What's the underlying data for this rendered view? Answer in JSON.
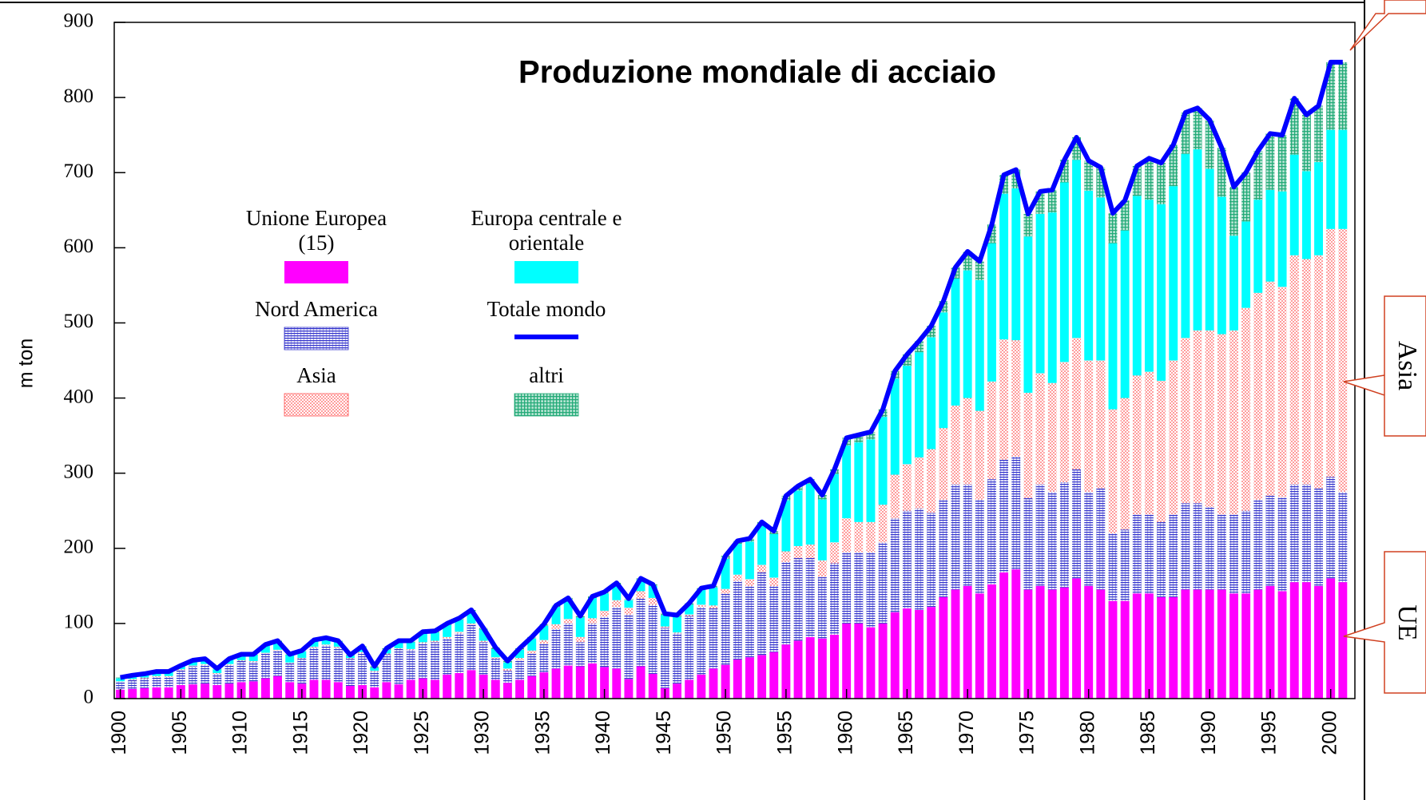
{
  "chart_data": {
    "type": "stacked_bar",
    "title": "Produzione mondiale di acciaio",
    "y_label": "m ton",
    "x": [
      1900,
      1901,
      1902,
      1903,
      1904,
      1905,
      1906,
      1907,
      1908,
      1909,
      1910,
      1911,
      1912,
      1913,
      1914,
      1915,
      1916,
      1917,
      1918,
      1919,
      1920,
      1921,
      1922,
      1923,
      1924,
      1925,
      1926,
      1927,
      1928,
      1929,
      1930,
      1931,
      1932,
      1933,
      1934,
      1935,
      1936,
      1937,
      1938,
      1939,
      1940,
      1941,
      1942,
      1943,
      1944,
      1945,
      1946,
      1947,
      1948,
      1949,
      1950,
      1951,
      1952,
      1953,
      1954,
      1955,
      1956,
      1957,
      1958,
      1959,
      1960,
      1961,
      1962,
      1963,
      1964,
      1965,
      1966,
      1967,
      1968,
      1969,
      1970,
      1971,
      1972,
      1973,
      1974,
      1975,
      1976,
      1977,
      1978,
      1979,
      1980,
      1981,
      1982,
      1983,
      1984,
      1985,
      1986,
      1987,
      1988,
      1989,
      1990,
      1991,
      1992,
      1993,
      1994,
      1995,
      1996,
      1997,
      1998,
      1999,
      2000,
      2001
    ],
    "xlim": [
      1899.5,
      2002
    ],
    "xticks": [
      1900,
      1905,
      1910,
      1915,
      1920,
      1925,
      1930,
      1935,
      1940,
      1945,
      1950,
      1955,
      1960,
      1965,
      1970,
      1975,
      1980,
      1985,
      1990,
      1995,
      2000
    ],
    "ylim": [
      0,
      900
    ],
    "yticks": [
      0,
      100,
      200,
      300,
      400,
      500,
      600,
      700,
      800,
      900
    ],
    "series": [
      {
        "name": "Unione Europea (15)",
        "color": "#ff00ff",
        "pattern": "solid",
        "values": [
          12,
          13,
          14,
          15,
          15,
          18,
          19,
          20,
          18,
          20,
          22,
          23,
          27,
          30,
          22,
          20,
          25,
          25,
          22,
          17,
          18,
          15,
          22,
          19,
          25,
          27,
          25,
          32,
          34,
          38,
          32,
          25,
          21,
          25,
          30,
          35,
          40,
          44,
          43,
          47,
          42,
          40,
          26,
          43,
          33,
          14,
          20,
          25,
          32,
          40,
          45,
          52,
          55,
          58,
          62,
          72,
          77,
          82,
          80,
          85,
          100,
          100,
          95,
          100,
          115,
          120,
          118,
          122,
          135,
          145,
          150,
          140,
          152,
          168,
          172,
          145,
          150,
          145,
          148,
          160,
          150,
          145,
          130,
          130,
          140,
          140,
          135,
          135,
          145,
          145,
          145,
          145,
          140,
          140,
          145,
          150,
          143,
          155,
          155,
          150,
          160,
          155
        ]
      },
      {
        "name": "Nord  America",
        "color": "#3333cc",
        "pattern": "hlines",
        "values": [
          10,
          12,
          13,
          14,
          14,
          20,
          24,
          25,
          15,
          25,
          28,
          26,
          33,
          34,
          25,
          33,
          43,
          46,
          46,
          36,
          43,
          21,
          37,
          47,
          40,
          47,
          50,
          48,
          53,
          60,
          43,
          28,
          16,
          26,
          30,
          38,
          53,
          56,
          32,
          53,
          67,
          82,
          86,
          90,
          92,
          80,
          67,
          85,
          90,
          80,
          95,
          105,
          95,
          110,
          88,
          110,
          110,
          105,
          82,
          95,
          95,
          95,
          100,
          108,
          125,
          130,
          135,
          125,
          130,
          140,
          135,
          125,
          140,
          150,
          150,
          122,
          135,
          130,
          140,
          145,
          125,
          135,
          90,
          95,
          105,
          105,
          100,
          110,
          115,
          115,
          110,
          100,
          105,
          110,
          120,
          120,
          125,
          130,
          130,
          130,
          135,
          120
        ]
      },
      {
        "name": "Asia",
        "color": "#ff5555",
        "pattern": "dots",
        "values": [
          1,
          1,
          1,
          1,
          1,
          1,
          1,
          1,
          1,
          1,
          1,
          1,
          1,
          1,
          1,
          1,
          1,
          1,
          1,
          1,
          1,
          1,
          1,
          1,
          1,
          1,
          2,
          2,
          2,
          2,
          2,
          2,
          3,
          3,
          4,
          5,
          6,
          6,
          7,
          7,
          8,
          9,
          9,
          10,
          9,
          2,
          1,
          2,
          3,
          4,
          6,
          8,
          9,
          10,
          11,
          14,
          16,
          18,
          22,
          28,
          45,
          40,
          40,
          50,
          58,
          62,
          68,
          85,
          95,
          105,
          115,
          118,
          130,
          160,
          155,
          140,
          148,
          145,
          160,
          175,
          175,
          170,
          165,
          175,
          185,
          190,
          188,
          205,
          220,
          230,
          235,
          240,
          245,
          270,
          275,
          285,
          280,
          305,
          300,
          310,
          330,
          350
        ]
      },
      {
        "name": "Europa centrale e orientale",
        "color": "#00ffff",
        "pattern": "solid",
        "values": [
          4,
          4,
          4,
          5,
          5,
          4,
          6,
          6,
          5,
          6,
          7,
          8,
          10,
          11,
          10,
          9,
          8,
          8,
          7,
          3,
          6,
          4,
          5,
          8,
          9,
          12,
          11,
          16,
          16,
          16,
          15,
          11,
          8,
          11,
          16,
          19,
          23,
          26,
          26,
          27,
          23,
          21,
          10,
          15,
          16,
          15,
          21,
          13,
          20,
          24,
          40,
          41,
          50,
          53,
          58,
          68,
          74,
          81,
          81,
          91,
          97,
          106,
          110,
          117,
          128,
          131,
          140,
          149,
          154,
          169,
          170,
          174,
          184,
          194,
          202,
          208,
          212,
          227,
          239,
          237,
          226,
          217,
          221,
          223,
          239,
          229,
          235,
          232,
          245,
          241,
          215,
          183,
          126,
          115,
          124,
          122,
          127,
          134,
          117,
          124,
          132,
          132
        ]
      },
      {
        "name": "altri",
        "color": "#22aa77",
        "pattern": "grid",
        "values": [
          1,
          1,
          1,
          1,
          1,
          1,
          1,
          1,
          1,
          1,
          1,
          1,
          1,
          1,
          1,
          1,
          1,
          1,
          1,
          1,
          2,
          2,
          2,
          2,
          2,
          2,
          2,
          2,
          2,
          2,
          2,
          2,
          2,
          2,
          2,
          2,
          2,
          2,
          2,
          2,
          2,
          2,
          2,
          2,
          2,
          2,
          2,
          2,
          2,
          2,
          4,
          4,
          4,
          4,
          4,
          6,
          6,
          6,
          6,
          6,
          10,
          10,
          10,
          10,
          10,
          15,
          15,
          15,
          15,
          15,
          25,
          25,
          25,
          25,
          25,
          30,
          30,
          30,
          30,
          30,
          40,
          40,
          40,
          40,
          40,
          55,
          55,
          55,
          55,
          55,
          65,
          65,
          65,
          65,
          65,
          75,
          75,
          75,
          75,
          75,
          90,
          90
        ]
      }
    ],
    "total": {
      "name": "Totale mondo",
      "color": "#0000ff",
      "values": [
        28,
        31,
        33,
        36,
        36,
        44,
        51,
        53,
        40,
        53,
        59,
        59,
        72,
        77,
        59,
        64,
        78,
        81,
        77,
        58,
        70,
        43,
        67,
        77,
        77,
        89,
        90,
        100,
        107,
        118,
        94,
        68,
        50,
        67,
        82,
        99,
        124,
        134,
        110,
        136,
        142,
        154,
        133,
        160,
        152,
        113,
        111,
        127,
        147,
        150,
        190,
        210,
        213,
        235,
        223,
        270,
        283,
        292,
        271,
        305,
        347,
        351,
        355,
        385,
        436,
        458,
        476,
        496,
        529,
        574,
        595,
        582,
        631,
        697,
        704,
        645,
        675,
        677,
        717,
        747,
        716,
        707,
        646,
        663,
        709,
        719,
        713,
        737,
        780,
        786,
        770,
        733,
        681,
        700,
        729,
        752,
        750,
        799,
        777,
        789,
        847,
        847
      ]
    },
    "annotations": [
      "Asia",
      "UE"
    ]
  }
}
